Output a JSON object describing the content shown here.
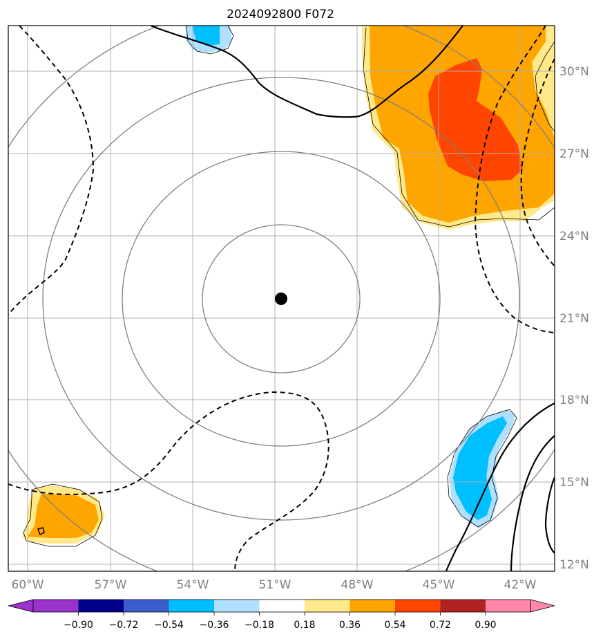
{
  "title": "2024092800 F072",
  "axes": {
    "lon_ticks": [
      "60°W",
      "57°W",
      "54°W",
      "51°W",
      "48°W",
      "45°W",
      "42°W"
    ],
    "lat_ticks": [
      "12°N",
      "15°N",
      "18°N",
      "21°N",
      "24°N",
      "27°N",
      "30°N"
    ]
  },
  "colorbar": {
    "labels": [
      "−0.90",
      "−0.72",
      "−0.54",
      "−0.36",
      "−0.18",
      "0.18",
      "0.36",
      "0.54",
      "0.72",
      "0.90"
    ],
    "colors": [
      "#9933cc",
      "#00008b",
      "#3a5fcd",
      "#00bfff",
      "#b0e0ff",
      "#ffffff",
      "#ffe98a",
      "#ffa500",
      "#ff4500",
      "#b22222",
      "#ff88aa"
    ]
  },
  "colors": {
    "range_rings": "#808080",
    "gridlines": "#b0b0b0",
    "storm_center": "#000000",
    "contour": "#000000"
  }
}
